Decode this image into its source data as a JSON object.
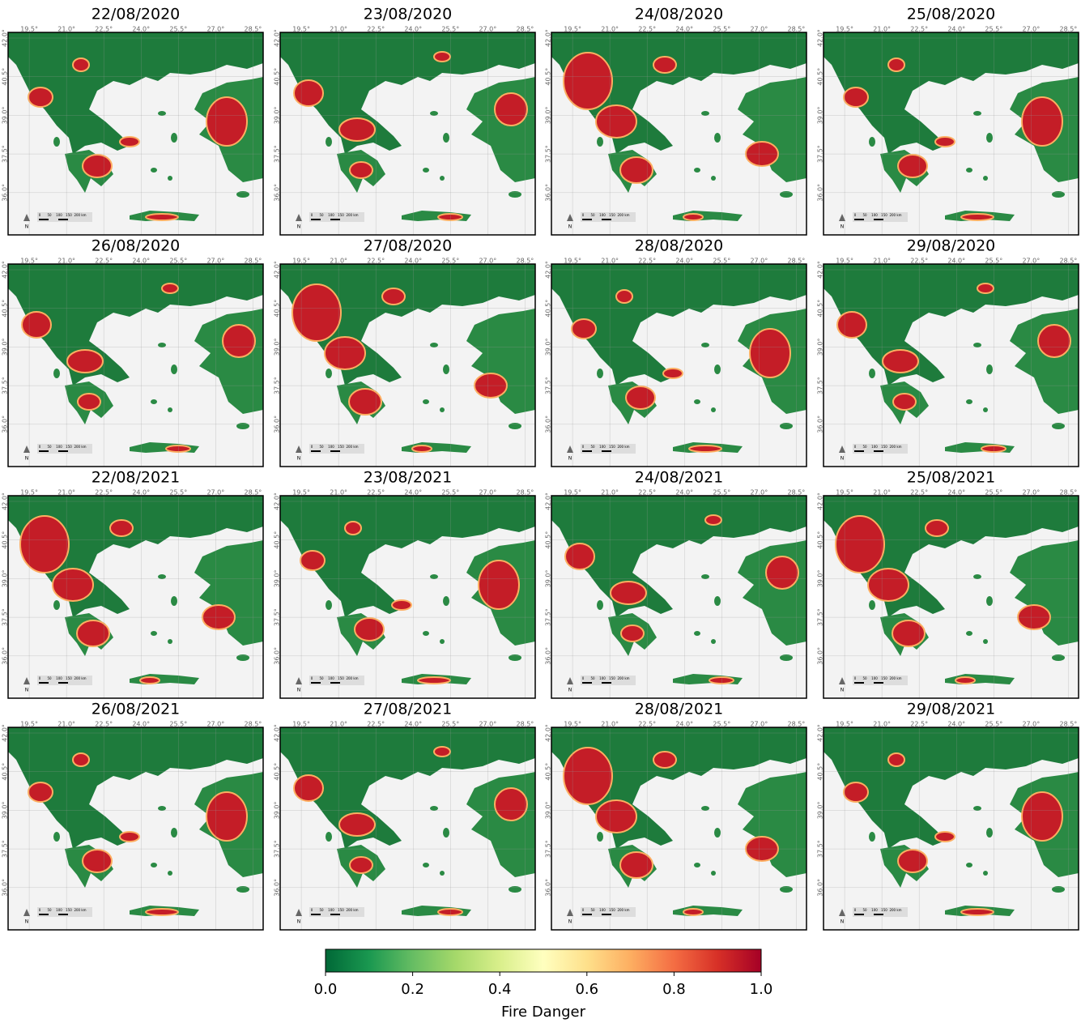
{
  "panels": [
    {
      "title": "22/08/2020"
    },
    {
      "title": "23/08/2020"
    },
    {
      "title": "24/08/2020"
    },
    {
      "title": "25/08/2020"
    },
    {
      "title": "26/08/2020"
    },
    {
      "title": "27/08/2020"
    },
    {
      "title": "28/08/2020"
    },
    {
      "title": "29/08/2020"
    },
    {
      "title": "22/08/2021"
    },
    {
      "title": "23/08/2021"
    },
    {
      "title": "24/08/2021"
    },
    {
      "title": "25/08/2021"
    },
    {
      "title": "26/08/2021"
    },
    {
      "title": "27/08/2021"
    },
    {
      "title": "28/08/2021"
    },
    {
      "title": "29/08/2021"
    }
  ],
  "lon_ticks": [
    {
      "value": 19.5,
      "label": "19.5°"
    },
    {
      "value": 21.0,
      "label": "21.0°"
    },
    {
      "value": 22.5,
      "label": "22.5°"
    },
    {
      "value": 24.0,
      "label": "24.0°"
    },
    {
      "value": 25.5,
      "label": "25.5°"
    },
    {
      "value": 27.0,
      "label": "27.0°"
    },
    {
      "value": 28.5,
      "label": "28.5°"
    }
  ],
  "lat_ticks": [
    {
      "value": 42.0,
      "label": "42.0°"
    },
    {
      "value": 40.5,
      "label": "40.5°"
    },
    {
      "value": 39.0,
      "label": "39.0°"
    },
    {
      "value": 37.5,
      "label": "37.5°"
    },
    {
      "value": 36.0,
      "label": "36.0°"
    }
  ],
  "scale_bar": {
    "labels": [
      "0",
      "50",
      "100",
      "150",
      "200 km"
    ]
  },
  "north_label": "N",
  "colorbar": {
    "label": "Fire Danger",
    "range": [
      0,
      1
    ],
    "colors": [
      "#006837",
      "#1a9850",
      "#66bd63",
      "#a6d96a",
      "#d9ef8b",
      "#ffffbf",
      "#fee08b",
      "#fdae61",
      "#f46d43",
      "#d73027",
      "#a50026"
    ],
    "ticks": [
      {
        "value": 0,
        "label": "0.0"
      },
      {
        "value": 0.2,
        "label": "0.2"
      },
      {
        "value": 0.4,
        "label": "0.4"
      },
      {
        "value": 0.6,
        "label": "0.6"
      },
      {
        "value": 0.8,
        "label": "0.8"
      },
      {
        "value": 1,
        "label": "1.0"
      }
    ]
  }
}
